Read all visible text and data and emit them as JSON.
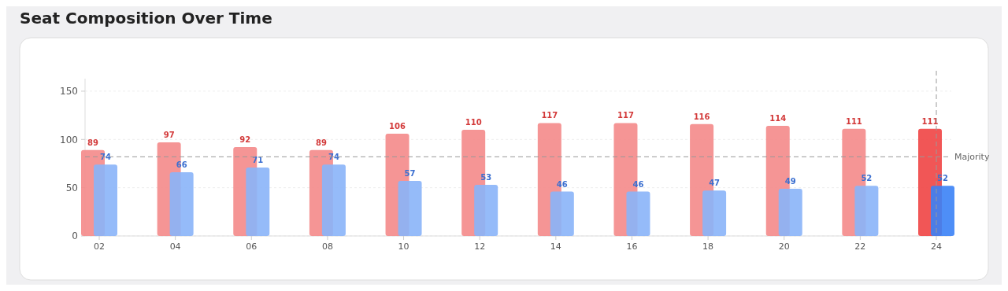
{
  "chart_data": {
    "type": "bar",
    "title": "Seat Composition Over Time",
    "categories": [
      "02",
      "04",
      "06",
      "08",
      "10",
      "12",
      "14",
      "16",
      "18",
      "20",
      "22",
      "24"
    ],
    "series": [
      {
        "colors": [
          "#f48a8a",
          "#f48a8a",
          "#f48a8a",
          "#f48a8a",
          "#f48a8a",
          "#f48a8a",
          "#f48a8a",
          "#f48a8a",
          "#f48a8a",
          "#f48a8a",
          "#f48a8a",
          "#ef4444"
        ],
        "values": [
          89,
          97,
          92,
          89,
          106,
          110,
          117,
          117,
          116,
          114,
          111,
          111
        ]
      },
      {
        "colors": [
          "#8ab4f8",
          "#8ab4f8",
          "#8ab4f8",
          "#8ab4f8",
          "#8ab4f8",
          "#8ab4f8",
          "#8ab4f8",
          "#8ab4f8",
          "#8ab4f8",
          "#8ab4f8",
          "#8ab4f8",
          "#3b82f6"
        ],
        "values": [
          74,
          66,
          71,
          74,
          57,
          53,
          46,
          46,
          47,
          49,
          52,
          52
        ]
      }
    ],
    "ylim": [
      0,
      163
    ],
    "yticks": [
      0,
      50,
      100,
      150
    ],
    "grid": "y",
    "data_labels": true,
    "ref_lines": [
      {
        "axis": "y",
        "value": 82,
        "label": "Majority",
        "line_style": "dashed"
      },
      {
        "axis": "x",
        "value": "24",
        "line_style": "dashed"
      }
    ]
  }
}
